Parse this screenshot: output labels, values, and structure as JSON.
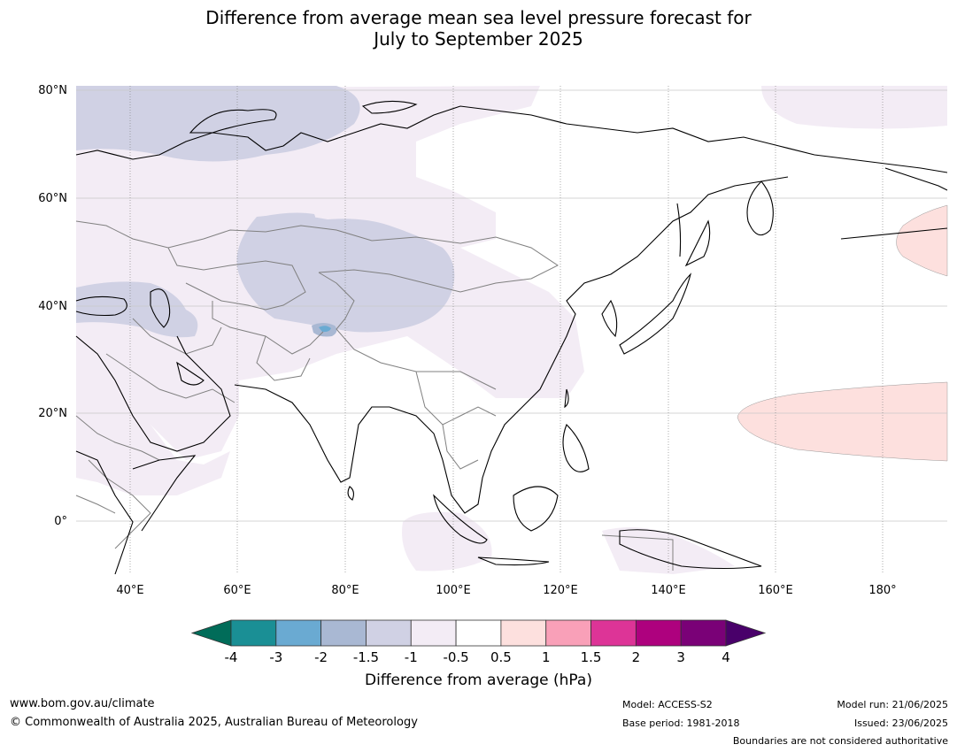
{
  "title_line1": "Difference from average mean sea level pressure forecast for",
  "title_line2": "July to September 2025",
  "latitude_labels": [
    "80°N",
    "60°N",
    "40°N",
    "20°N",
    "0°"
  ],
  "longitude_labels": [
    "40°E",
    "60°E",
    "80°E",
    "100°E",
    "120°E",
    "140°E",
    "160°E",
    "180°"
  ],
  "colorbar": {
    "ticks": [
      "-4",
      "-3",
      "-2",
      "-1.5",
      "-1",
      "-0.5",
      "0.5",
      "1",
      "1.5",
      "2",
      "3",
      "4"
    ],
    "colors": [
      "#1a8f95",
      "#6aaad2",
      "#a9b8d3",
      "#d0d1e4",
      "#f3ecf5",
      "#ffffff",
      "#fde0de",
      "#f9a0b8",
      "#dd3497",
      "#ae017e",
      "#7a0177"
    ],
    "low_extension_color": "#016c59",
    "high_extension_color": "#49006a",
    "label": "Difference from average (hPa)"
  },
  "footer": {
    "website": "www.bom.gov.au/climate",
    "copyright": "© Commonwealth of Australia 2025, Australian Bureau of Meteorology",
    "model": "Model: ACCESS-S2",
    "base_period": "Base period: 1981-2018",
    "model_run": "Model run: 21/06/2025",
    "issued": "Issued: 23/06/2025",
    "disclaimer": "Boundaries are not considered authoritative"
  }
}
